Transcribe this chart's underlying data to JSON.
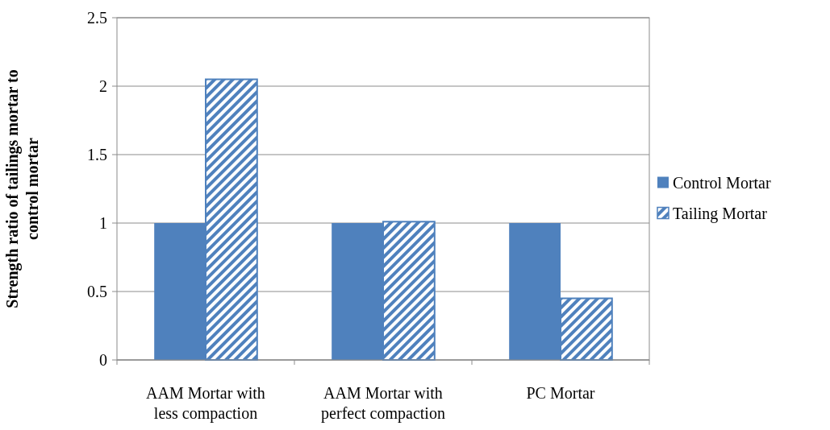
{
  "chart_data": {
    "type": "bar",
    "ylabel": "Strength ratio of tailings mortar to control mortar",
    "categories": [
      "AAM Mortar with less compaction",
      "AAM Mortar with perfect compaction",
      "PC Mortar"
    ],
    "series": [
      {
        "name": "Control Mortar",
        "color": "#4f81bd",
        "values": [
          1,
          1,
          1
        ]
      },
      {
        "name": "Tailing Mortar",
        "color": "#4f81bd",
        "values": [
          2.05,
          1.01,
          0.45
        ]
      }
    ],
    "ylim": [
      0,
      2.5
    ],
    "yticks": [
      0,
      0.5,
      1,
      1.5,
      2,
      2.5
    ],
    "grid": "y",
    "legend": "right"
  }
}
